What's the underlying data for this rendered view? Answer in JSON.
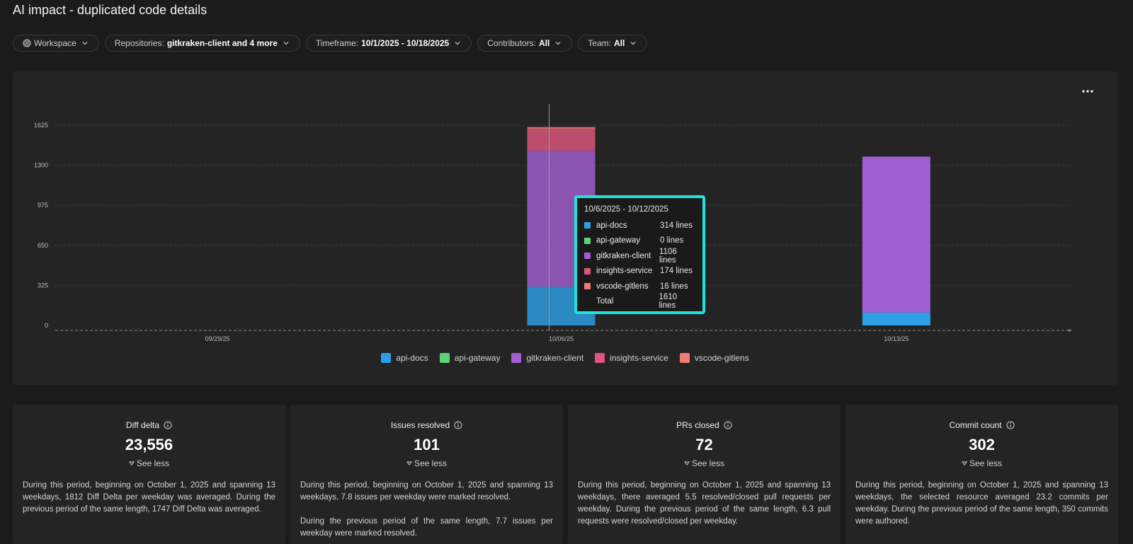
{
  "page": {
    "title": "AI impact - duplicated code details"
  },
  "filters": {
    "workspace": {
      "label": "Workspace"
    },
    "repositories": {
      "label": "Repositories:",
      "value": "gitkraken-client and 4 more"
    },
    "timeframe": {
      "label": "Timeframe:",
      "value": "10/1/2025 - 10/18/2025"
    },
    "contributors": {
      "label": "Contributors:",
      "value": "All"
    },
    "team": {
      "label": "Team:",
      "value": "All"
    }
  },
  "colors": {
    "api-docs": "#2d9fe6",
    "api-gateway": "#5fd37a",
    "gitkraken-client": "#a25fd1",
    "insights-service": "#e1557c",
    "vscode-gitlens": "#ef7b76",
    "tooltip_border": "#1de4dc"
  },
  "chart_data": {
    "type": "bar",
    "stacked": true,
    "categories": [
      "09/29/25",
      "10/06/25",
      "10/13/25"
    ],
    "series": [
      {
        "name": "api-docs",
        "values": [
          0,
          314,
          105
        ]
      },
      {
        "name": "api-gateway",
        "values": [
          0,
          0,
          0
        ]
      },
      {
        "name": "gitkraken-client",
        "values": [
          0,
          1106,
          1265
        ]
      },
      {
        "name": "insights-service",
        "values": [
          0,
          174,
          0
        ]
      },
      {
        "name": "vscode-gitlens",
        "values": [
          0,
          16,
          0
        ]
      }
    ],
    "y_ticks": [
      "0",
      "325",
      "650",
      "975",
      "1300",
      "1625"
    ],
    "ylim": [
      0,
      1625
    ],
    "grid": true,
    "legend": "bottom"
  },
  "tooltip": {
    "title": "10/6/2025 - 10/12/2025",
    "rows": [
      {
        "name": "api-docs",
        "value": "314 lines"
      },
      {
        "name": "api-gateway",
        "value": "0 lines"
      },
      {
        "name": "gitkraken-client",
        "value": "1106 lines"
      },
      {
        "name": "insights-service",
        "value": "174 lines"
      },
      {
        "name": "vscode-gitlens",
        "value": "16 lines"
      }
    ],
    "total_label": "Total",
    "total_value": "1610 lines"
  },
  "legend": [
    "api-docs",
    "api-gateway",
    "gitkraken-client",
    "insights-service",
    "vscode-gitlens"
  ],
  "cards": [
    {
      "title": "Diff delta",
      "value": "23,556",
      "toggle": "See less",
      "description": "During this period, beginning on October 1, 2025 and spanning 13 weekdays, 1812 Diff Delta per weekday was averaged. During the previous period of the same length, 1747 Diff Delta was averaged."
    },
    {
      "title": "Issues resolved",
      "value": "101",
      "toggle": "See less",
      "description": "During this period, beginning on October 1, 2025 and spanning 13 weekdays, 7.8 issues per weekday were marked resolved.\n\nDuring the previous period of the same length, 7.7 issues per weekday were marked resolved."
    },
    {
      "title": "PRs closed",
      "value": "72",
      "toggle": "See less",
      "description": "During this period, beginning on October 1, 2025 and spanning 13 weekdays, there averaged 5.5 resolved/closed pull requests per weekday. During the previous period of the same length, 6.3 pull requests were resolved/closed per weekday."
    },
    {
      "title": "Commit count",
      "value": "302",
      "toggle": "See less",
      "description": "During this period, beginning on October 1, 2025 and spanning 13 weekdays, the selected resource averaged 23.2 commits per weekday. During the previous period of the same length, 350 commits were authored."
    }
  ]
}
